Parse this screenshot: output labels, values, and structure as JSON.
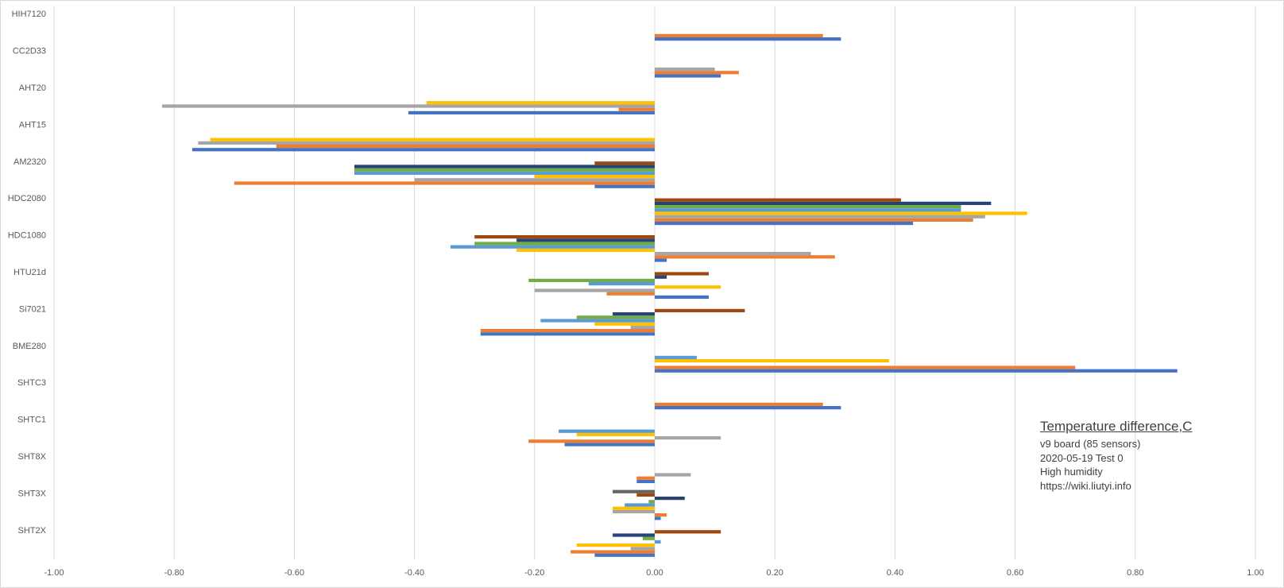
{
  "chart_data": {
    "type": "bar",
    "orientation": "horizontal",
    "title": "Temperature difference,C",
    "subtitle_lines": [
      "v9 board (85 sensors)",
      "2020-05-19  Test 0",
      "High humidity",
      "https://wiki.liutyi.info"
    ],
    "xlim": [
      -1.0,
      1.0
    ],
    "x_ticks": [
      "-1.00",
      "-0.80",
      "-0.60",
      "-0.40",
      "-0.20",
      "0.00",
      "0.20",
      "0.40",
      "0.60",
      "0.80",
      "1.00"
    ],
    "grid": true,
    "legend": "none",
    "colors": [
      "#4472c4",
      "#ed7d31",
      "#a5a5a5",
      "#ffc000",
      "#5b9bd5",
      "#70ad47",
      "#264478",
      "#9e480e",
      "#636363"
    ],
    "categories": [
      "HIH7120",
      "CC2D33",
      "AHT20",
      "AHT15",
      "AM2320",
      "HDC2080",
      "HDC1080",
      "HTU21d",
      "Si7021",
      "BME280",
      "SHTC3",
      "SHTC1",
      "SHT8X",
      "SHT3X",
      "SHT2X"
    ],
    "values": [
      [
        0.31,
        0.28
      ],
      [
        0.11,
        0.14,
        0.1
      ],
      [
        -0.41,
        -0.06,
        -0.82,
        -0.38
      ],
      [
        -0.77,
        -0.63,
        -0.76,
        -0.74
      ],
      [
        -0.1,
        -0.7,
        -0.4,
        -0.2,
        -0.5,
        -0.5,
        -0.5,
        -0.1
      ],
      [
        0.43,
        0.53,
        0.55,
        0.62,
        0.51,
        0.51,
        0.56,
        0.41
      ],
      [
        0.02,
        0.3,
        0.26,
        -0.23,
        -0.34,
        -0.3,
        -0.23,
        -0.3
      ],
      [
        0.09,
        -0.08,
        -0.2,
        0.11,
        -0.11,
        -0.21,
        0.02,
        0.09
      ],
      [
        -0.29,
        -0.29,
        -0.04,
        -0.1,
        -0.19,
        -0.13,
        -0.07,
        0.15
      ],
      [
        0.87,
        0.7,
        0,
        0.39,
        0.07
      ],
      [
        0.31,
        0.28
      ],
      [
        -0.15,
        -0.21,
        0.11,
        -0.13,
        -0.16
      ],
      [
        -0.03,
        -0.03,
        0.06
      ],
      [
        0.01,
        0.02,
        -0.07,
        -0.07,
        -0.05,
        -0.01,
        0.05,
        -0.03,
        -0.07
      ],
      [
        -0.1,
        -0.14,
        -0.04,
        -0.13,
        0.01,
        -0.02,
        -0.07,
        0.11
      ]
    ]
  }
}
